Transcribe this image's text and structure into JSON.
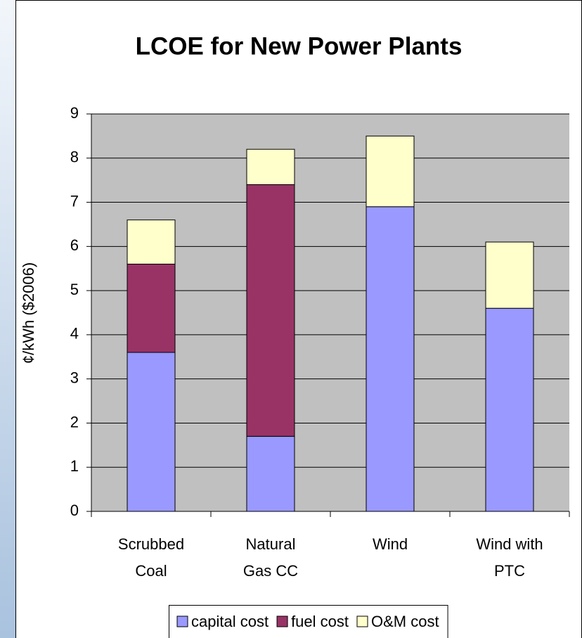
{
  "chart_data": {
    "type": "stacked_bar",
    "title": "LCOE for New Power Plants",
    "y_label": "¢/kWh ($2006)",
    "categories": [
      [
        "Scrubbed",
        "Coal"
      ],
      [
        "Natural",
        "Gas CC"
      ],
      [
        "Wind"
      ],
      [
        "Wind with",
        "PTC"
      ]
    ],
    "series": [
      {
        "name": "capital cost",
        "color": "#9999ff",
        "values": [
          3.6,
          1.7,
          6.9,
          4.6
        ]
      },
      {
        "name": "fuel cost",
        "color": "#993366",
        "values": [
          2.0,
          5.7,
          0,
          0
        ]
      },
      {
        "name": "O&M cost",
        "color": "#ffffcc",
        "values": [
          1.0,
          0.8,
          1.6,
          1.5
        ]
      }
    ],
    "ylim": [
      0,
      9
    ],
    "yticks": [
      0,
      1,
      2,
      3,
      4,
      5,
      6,
      7,
      8,
      9
    ],
    "grid": true,
    "legend": "bottom"
  }
}
